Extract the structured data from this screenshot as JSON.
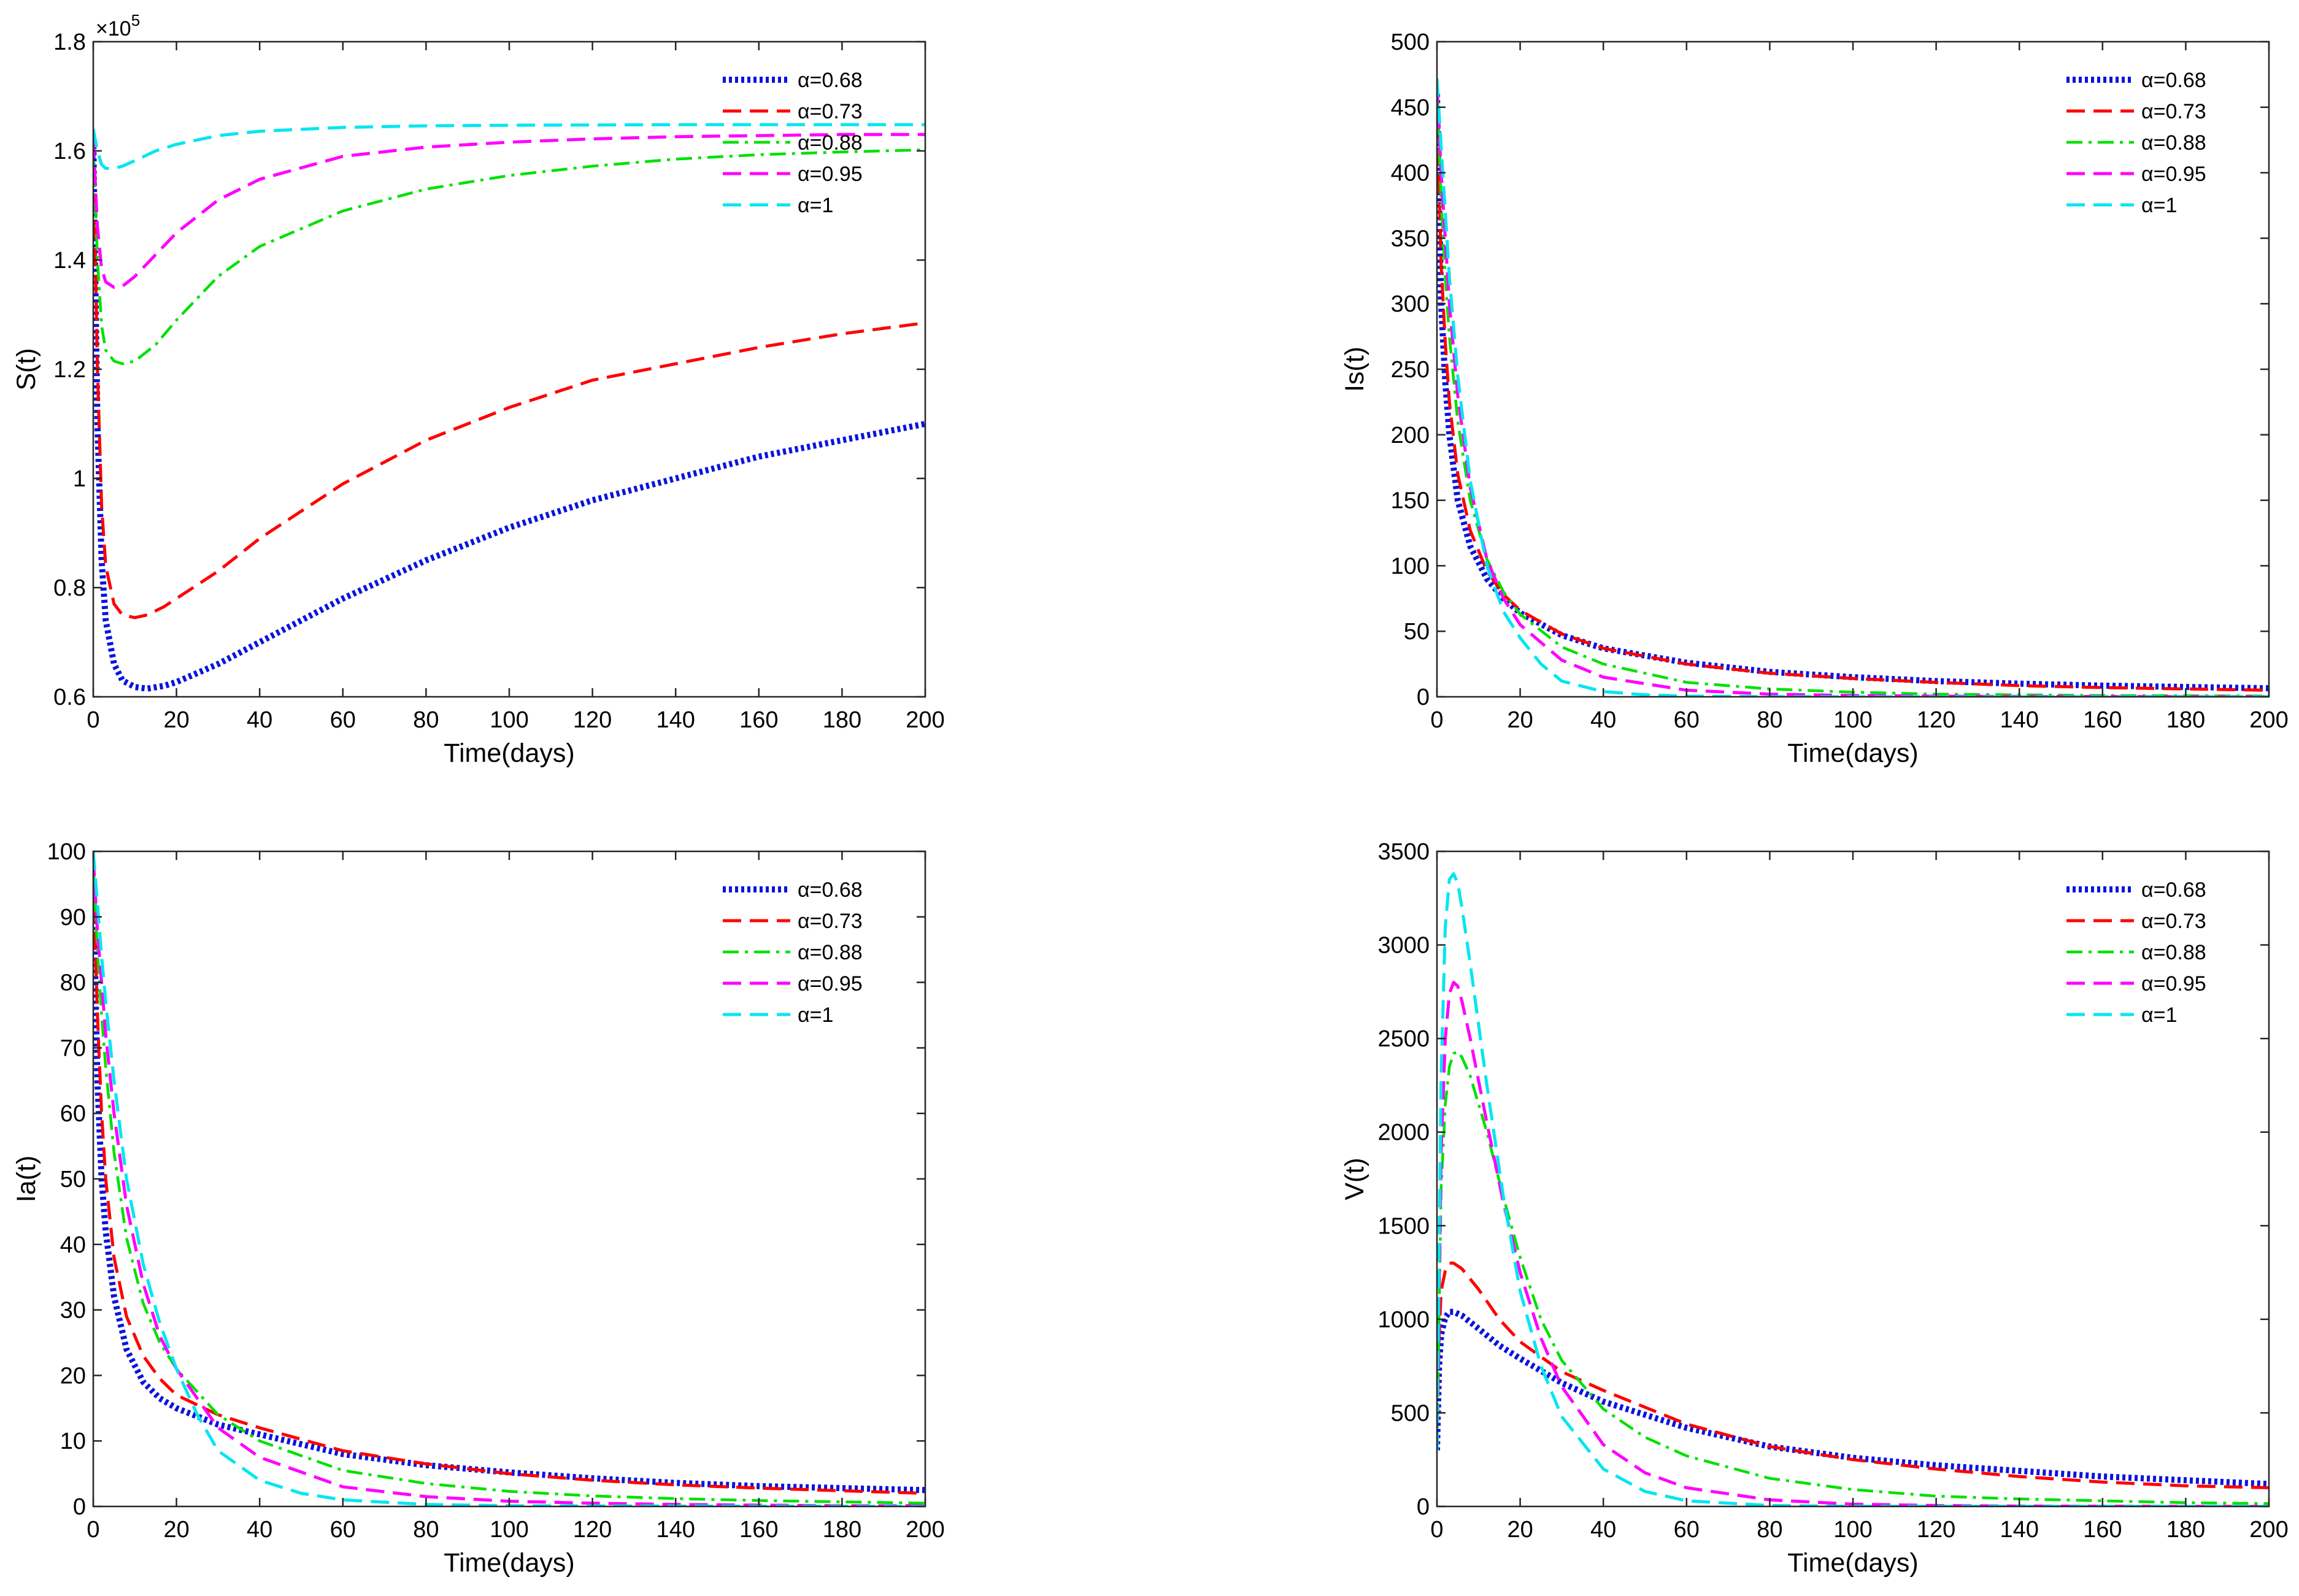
{
  "figure": {
    "legend_prefix": "α=",
    "legend_labels": [
      "α=0.68",
      "α=0.73",
      "α=0.88",
      "α=0.95",
      "α=1"
    ],
    "colors": [
      "#0a14dc",
      "#ff0000",
      "#00e100",
      "#ff00ff",
      "#00e6f0"
    ],
    "line_styles": [
      "dotted",
      "dashed",
      "dash-dot",
      "dashed",
      "dashed"
    ]
  },
  "chart_data": [
    {
      "type": "line",
      "xlabel": "Time(days)",
      "ylabel": "S(t)",
      "scale_label": "×10",
      "scale_exponent": "5",
      "xlim": [
        0,
        200
      ],
      "ylim": [
        0.6,
        1.8
      ],
      "xticks": [
        0,
        20,
        40,
        60,
        80,
        100,
        120,
        140,
        160,
        180,
        200
      ],
      "yticks": [
        0.6,
        0.8,
        1,
        1.2,
        1.4,
        1.6,
        1.8
      ],
      "ytick_labels": [
        "0.6",
        "0.8",
        "1",
        "1.2",
        "1.4",
        "1.6",
        "1.8"
      ],
      "legend_position": "top-right",
      "series": [
        {
          "name": "α=0.68",
          "x": [
            0,
            1,
            2,
            3,
            5,
            7,
            10,
            13,
            17,
            20,
            30,
            40,
            50,
            60,
            80,
            100,
            120,
            140,
            160,
            180,
            200
          ],
          "values": [
            1.62,
            1.1,
            0.85,
            0.74,
            0.66,
            0.63,
            0.618,
            0.615,
            0.62,
            0.627,
            0.66,
            0.7,
            0.74,
            0.78,
            0.85,
            0.91,
            0.96,
            1.0,
            1.04,
            1.07,
            1.1
          ]
        },
        {
          "name": "α=0.73",
          "x": [
            0,
            1,
            2,
            3,
            5,
            7,
            10,
            13,
            17,
            20,
            30,
            40,
            50,
            60,
            80,
            100,
            120,
            140,
            160,
            180,
            200
          ],
          "values": [
            1.62,
            1.2,
            0.95,
            0.84,
            0.77,
            0.75,
            0.745,
            0.75,
            0.765,
            0.78,
            0.83,
            0.89,
            0.94,
            0.99,
            1.07,
            1.13,
            1.18,
            1.21,
            1.24,
            1.265,
            1.285
          ]
        },
        {
          "name": "α=0.88",
          "x": [
            0,
            1,
            2,
            3,
            5,
            7,
            10,
            15,
            20,
            30,
            40,
            60,
            80,
            100,
            120,
            140,
            160,
            180,
            200
          ],
          "values": [
            1.62,
            1.4,
            1.28,
            1.235,
            1.215,
            1.21,
            1.215,
            1.245,
            1.29,
            1.37,
            1.425,
            1.49,
            1.53,
            1.555,
            1.572,
            1.585,
            1.593,
            1.598,
            1.602
          ]
        },
        {
          "name": "α=0.95",
          "x": [
            0,
            1,
            2,
            3,
            5,
            7,
            10,
            15,
            20,
            30,
            40,
            60,
            80,
            100,
            120,
            140,
            160,
            180,
            200
          ],
          "values": [
            1.62,
            1.46,
            1.385,
            1.36,
            1.35,
            1.352,
            1.37,
            1.41,
            1.45,
            1.51,
            1.548,
            1.59,
            1.607,
            1.616,
            1.622,
            1.626,
            1.628,
            1.63,
            1.63
          ]
        },
        {
          "name": "α=1",
          "x": [
            0,
            1,
            2,
            3,
            5,
            7,
            10,
            15,
            20,
            30,
            40,
            60,
            80,
            100,
            140,
            200
          ],
          "values": [
            1.64,
            1.6,
            1.575,
            1.568,
            1.568,
            1.572,
            1.582,
            1.6,
            1.612,
            1.628,
            1.636,
            1.643,
            1.646,
            1.647,
            1.648,
            1.648
          ]
        }
      ]
    },
    {
      "type": "line",
      "xlabel": "Time(days)",
      "ylabel": "Is(t)",
      "xlim": [
        0,
        200
      ],
      "ylim": [
        0,
        500
      ],
      "xticks": [
        0,
        20,
        40,
        60,
        80,
        100,
        120,
        140,
        160,
        180,
        200
      ],
      "yticks": [
        0,
        50,
        100,
        150,
        200,
        250,
        300,
        350,
        400,
        450,
        500
      ],
      "ytick_labels": [
        "0",
        "50",
        "100",
        "150",
        "200",
        "250",
        "300",
        "350",
        "400",
        "450",
        "500"
      ],
      "legend_position": "top-right",
      "series": [
        {
          "name": "α=0.68",
          "x": [
            0,
            1,
            2,
            3,
            5,
            8,
            12,
            16,
            20,
            30,
            40,
            60,
            80,
            100,
            120,
            140,
            160,
            180,
            200
          ],
          "values": [
            460,
            300,
            240,
            200,
            150,
            115,
            90,
            75,
            64,
            47,
            37,
            26,
            19,
            15,
            12,
            10,
            8.5,
            7.5,
            6.5
          ]
        },
        {
          "name": "α=0.73",
          "x": [
            0,
            1,
            2,
            3,
            5,
            8,
            12,
            16,
            20,
            30,
            40,
            60,
            80,
            100,
            120,
            140,
            160,
            180,
            200
          ],
          "values": [
            460,
            330,
            270,
            225,
            170,
            127,
            96,
            78,
            66,
            48,
            37,
            25,
            18,
            14,
            11,
            8.5,
            7,
            6,
            5
          ]
        },
        {
          "name": "α=0.88",
          "x": [
            0,
            1,
            2,
            3,
            5,
            8,
            12,
            16,
            20,
            30,
            40,
            60,
            80,
            100,
            120,
            140,
            160,
            180,
            200
          ],
          "values": [
            465,
            380,
            320,
            275,
            210,
            150,
            105,
            80,
            63,
            38,
            25,
            11,
            6,
            3.5,
            2,
            1.5,
            1,
            0.8,
            0.6
          ]
        },
        {
          "name": "α=0.95",
          "x": [
            0,
            1,
            2,
            3,
            5,
            8,
            12,
            16,
            20,
            30,
            40,
            60,
            80,
            100,
            120,
            140,
            160,
            180,
            200
          ],
          "values": [
            468,
            400,
            350,
            300,
            230,
            160,
            105,
            75,
            55,
            28,
            15,
            5,
            2,
            1,
            0.5,
            0.3,
            0.2,
            0.1,
            0.1
          ]
        },
        {
          "name": "α=1",
          "x": [
            0,
            1,
            2,
            3,
            5,
            8,
            12,
            16,
            20,
            25,
            30,
            40,
            50,
            60,
            80,
            100,
            200
          ],
          "values": [
            472,
            420,
            370,
            320,
            245,
            165,
            100,
            65,
            45,
            25,
            12,
            4,
            1.5,
            0.5,
            0.1,
            0,
            0
          ]
        }
      ]
    },
    {
      "type": "line",
      "xlabel": "Time(days)",
      "ylabel": "Ia(t)",
      "xlim": [
        0,
        200
      ],
      "ylim": [
        0,
        100
      ],
      "xticks": [
        0,
        20,
        40,
        60,
        80,
        100,
        120,
        140,
        160,
        180,
        200
      ],
      "yticks": [
        0,
        10,
        20,
        30,
        40,
        50,
        60,
        70,
        80,
        90,
        100
      ],
      "ytick_labels": [
        "0",
        "10",
        "20",
        "30",
        "40",
        "50",
        "60",
        "70",
        "80",
        "90",
        "100"
      ],
      "legend_position": "top-right",
      "series": [
        {
          "name": "α=0.68",
          "x": [
            0,
            1,
            2,
            3,
            5,
            8,
            12,
            16,
            20,
            30,
            40,
            60,
            80,
            100,
            120,
            140,
            160,
            180,
            200
          ],
          "values": [
            95,
            65,
            50,
            42,
            32,
            24,
            19,
            16.5,
            15,
            12.5,
            11,
            8,
            6.3,
            5.2,
            4.3,
            3.6,
            3.1,
            2.8,
            2.5
          ]
        },
        {
          "name": "α=0.73",
          "x": [
            0,
            1,
            2,
            3,
            5,
            8,
            12,
            16,
            20,
            30,
            40,
            60,
            80,
            100,
            120,
            140,
            160,
            180,
            200
          ],
          "values": [
            96,
            75,
            60,
            50,
            38,
            29,
            23,
            19.5,
            17,
            14,
            12,
            8.5,
            6.5,
            5,
            4,
            3.3,
            2.8,
            2.4,
            2
          ]
        },
        {
          "name": "α=0.88",
          "x": [
            0,
            1,
            2,
            3,
            5,
            8,
            12,
            16,
            20,
            30,
            40,
            60,
            80,
            100,
            120,
            140,
            160,
            180,
            200
          ],
          "values": [
            98,
            85,
            75,
            67,
            54,
            41,
            31,
            25,
            21,
            14,
            10,
            5.5,
            3.5,
            2.3,
            1.6,
            1.2,
            0.9,
            0.7,
            0.5
          ]
        },
        {
          "name": "α=0.95",
          "x": [
            0,
            1,
            2,
            3,
            5,
            8,
            12,
            16,
            20,
            30,
            40,
            60,
            80,
            100,
            120,
            140,
            160,
            180,
            200
          ],
          "values": [
            99,
            88,
            80,
            72,
            60,
            46,
            34,
            26,
            21,
            12,
            7.5,
            3,
            1.5,
            0.8,
            0.5,
            0.3,
            0.2,
            0.1,
            0.1
          ]
        },
        {
          "name": "α=1",
          "x": [
            0,
            1,
            2,
            3,
            5,
            8,
            12,
            16,
            20,
            25,
            30,
            40,
            50,
            60,
            80,
            100,
            200
          ],
          "values": [
            100,
            92,
            84,
            77,
            65,
            50,
            37,
            28,
            21,
            14,
            8.5,
            4,
            2,
            1,
            0.3,
            0.1,
            0
          ]
        }
      ]
    },
    {
      "type": "line",
      "xlabel": "Time(days)",
      "ylabel": "V(t)",
      "xlim": [
        0,
        200
      ],
      "ylim": [
        0,
        3500
      ],
      "xticks": [
        0,
        20,
        40,
        60,
        80,
        100,
        120,
        140,
        160,
        180,
        200
      ],
      "yticks": [
        0,
        500,
        1000,
        1500,
        2000,
        2500,
        3000,
        3500
      ],
      "ytick_labels": [
        "0",
        "500",
        "1000",
        "1500",
        "2000",
        "2500",
        "3000",
        "3500"
      ],
      "legend_position": "top-right",
      "series": [
        {
          "name": "α=0.68",
          "x": [
            0,
            0.5,
            1,
            2,
            3,
            4,
            6,
            10,
            15,
            20,
            30,
            40,
            60,
            80,
            100,
            120,
            140,
            160,
            180,
            200
          ],
          "values": [
            300,
            750,
            920,
            1010,
            1040,
            1040,
            1020,
            950,
            860,
            790,
            660,
            560,
            420,
            320,
            260,
            220,
            190,
            160,
            140,
            120
          ]
        },
        {
          "name": "α=0.73",
          "x": [
            0,
            0.5,
            1,
            2,
            3,
            4,
            6,
            10,
            15,
            20,
            30,
            40,
            60,
            80,
            100,
            120,
            140,
            160,
            180,
            200
          ],
          "values": [
            300,
            900,
            1150,
            1260,
            1300,
            1300,
            1270,
            1160,
            1000,
            880,
            720,
            620,
            440,
            320,
            250,
            200,
            160,
            130,
            110,
            100
          ]
        },
        {
          "name": "α=0.88",
          "x": [
            0,
            1,
            2,
            3,
            4,
            5,
            6,
            8,
            12,
            16,
            20,
            25,
            30,
            40,
            50,
            60,
            80,
            100,
            120,
            140,
            160,
            180,
            200
          ],
          "values": [
            300,
            1700,
            2150,
            2350,
            2420,
            2430,
            2400,
            2300,
            2000,
            1650,
            1330,
            1000,
            780,
            520,
            370,
            270,
            150,
            90,
            55,
            40,
            30,
            20,
            15
          ]
        },
        {
          "name": "α=0.95",
          "x": [
            0,
            1,
            2,
            3,
            4,
            5,
            6,
            8,
            12,
            16,
            20,
            25,
            30,
            40,
            50,
            60,
            80,
            100,
            120,
            140,
            200
          ],
          "values": [
            300,
            1900,
            2500,
            2740,
            2800,
            2780,
            2700,
            2500,
            2050,
            1620,
            1250,
            900,
            640,
            330,
            180,
            100,
            35,
            12,
            5,
            2,
            0
          ]
        },
        {
          "name": "α=1",
          "x": [
            0,
            1,
            2,
            3,
            4,
            5,
            6,
            8,
            12,
            16,
            20,
            25,
            30,
            40,
            50,
            60,
            80,
            100,
            200
          ],
          "values": [
            300,
            2300,
            3100,
            3350,
            3380,
            3330,
            3200,
            2900,
            2250,
            1650,
            1150,
            750,
            480,
            200,
            80,
            30,
            5,
            1,
            0
          ]
        }
      ]
    }
  ]
}
